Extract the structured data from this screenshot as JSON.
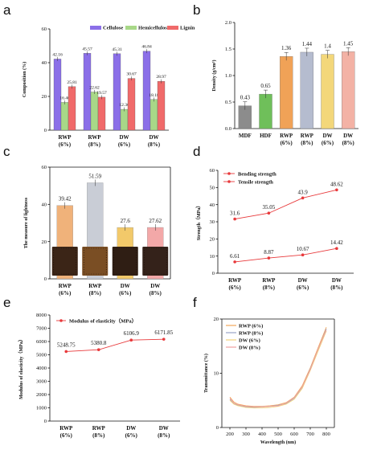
{
  "panels": {
    "a": {
      "letter": "a"
    },
    "b": {
      "letter": "b"
    },
    "c": {
      "letter": "c"
    },
    "d": {
      "letter": "d"
    },
    "e": {
      "letter": "e"
    },
    "f": {
      "letter": "f"
    }
  },
  "chart_data": [
    {
      "id": "a",
      "type": "bar",
      "ylabel": "Composition (%)",
      "ylim": [
        0,
        60
      ],
      "yticks": [
        0,
        20,
        40,
        60
      ],
      "categories": [
        [
          "RWP",
          "(6%)"
        ],
        [
          "RWP",
          "(8%)"
        ],
        [
          "DW",
          "(6%)"
        ],
        [
          "DW",
          "(8%)"
        ]
      ],
      "legend": "top",
      "series": [
        {
          "name": "Cellulose",
          "color": "#8b6fe8",
          "values": [
            42.16,
            45.57,
            45.31,
            46.84
          ],
          "labels": [
            "42.16",
            "45.57",
            "45.31",
            "46.84"
          ]
        },
        {
          "name": "Hemicellulose",
          "color": "#a8d888",
          "values": [
            16.46,
            22.62,
            12.36,
            18.18
          ],
          "labels": [
            "16.46",
            "22.62",
            "12.36",
            "18.18"
          ]
        },
        {
          "name": "Lignin",
          "color": "#f06a6a",
          "values": [
            25.81,
            19.57,
            30.67,
            28.97
          ],
          "labels": [
            "25.81",
            "19.57",
            "30.67",
            "28.97"
          ]
        }
      ]
    },
    {
      "id": "b",
      "type": "bar",
      "ylabel": "Density (g/cm³)",
      "ylim": [
        0,
        2.0
      ],
      "yticks": [
        "0.0",
        "0.5",
        "1.0",
        "1.5",
        "2.0"
      ],
      "categories": [
        [
          "MDF"
        ],
        [
          "HDF"
        ],
        [
          "RWP",
          "(6%)"
        ],
        [
          "RWP",
          "(8%)"
        ],
        [
          "DW",
          "(6%)"
        ],
        [
          "DW",
          "(8%)"
        ]
      ],
      "values": [
        0.43,
        0.65,
        1.36,
        1.44,
        1.4,
        1.45
      ],
      "labels": [
        "0.43",
        "0.65",
        "1.36",
        "1.44",
        "1.4",
        "1.45"
      ],
      "colors": [
        "#8c8c8c",
        "#6fbf5a",
        "#f0a257",
        "#b5bccf",
        "#f3d77a",
        "#f3b2a5"
      ]
    },
    {
      "id": "c",
      "type": "bar",
      "ylabel": "The measure of lightness",
      "ylim": [
        0,
        60
      ],
      "yticks": [
        0,
        20,
        40,
        60
      ],
      "categories": [
        [
          "RWP",
          "(6%)"
        ],
        [
          "RWP",
          "(8%)"
        ],
        [
          "DW",
          "(6%)"
        ],
        [
          "DW",
          "(8%)"
        ]
      ],
      "values": [
        39.42,
        51.59,
        27.6,
        27.62
      ],
      "labels": [
        "39.42",
        "51.59",
        "27.6",
        "27.62"
      ],
      "colors": [
        "#f0b27a",
        "#c9cdd6",
        "#f2c96a",
        "#f3a8a8"
      ]
    },
    {
      "id": "d",
      "type": "line",
      "ylabel": "Strength（MPa）",
      "ylim": [
        0,
        60
      ],
      "yticks": [
        0,
        10,
        20,
        30,
        40,
        50,
        60
      ],
      "categories": [
        [
          "RWP",
          "(6%)"
        ],
        [
          "RWP",
          "(8%)"
        ],
        [
          "DW",
          "(6%)"
        ],
        [
          "DW",
          "(8%)"
        ]
      ],
      "legend": "top-left",
      "series": [
        {
          "name": "Bending strength",
          "values": [
            31.6,
            35.05,
            43.9,
            48.62
          ],
          "labels": [
            "31.6",
            "35.05",
            "43.9",
            "48.62"
          ]
        },
        {
          "name": "Tensile strength",
          "values": [
            6.61,
            8.87,
            10.67,
            14.42
          ],
          "labels": [
            "6.61",
            "8.87",
            "10.67",
            "14.42"
          ]
        }
      ],
      "color": "#e8393b"
    },
    {
      "id": "e",
      "type": "line",
      "ylabel": "Modulus of elasticity（MPa）",
      "ylim": [
        0,
        8000
      ],
      "yticks": [
        0,
        1000,
        2000,
        3000,
        4000,
        5000,
        6000,
        7000,
        8000
      ],
      "categories": [
        [
          "RWP",
          "(6%)"
        ],
        [
          "RWP",
          "(8%)"
        ],
        [
          "DW",
          "(6%)"
        ],
        [
          "DW",
          "(8%)"
        ]
      ],
      "legend": "top-left",
      "series": [
        {
          "name": "Modulus of elasticity（MPa）",
          "values": [
            5248.75,
            5380.8,
            6106.9,
            6171.85
          ],
          "labels": [
            "5248.75",
            "5380.8",
            "6106.9",
            "6171.85"
          ]
        }
      ],
      "color": "#e8393b"
    },
    {
      "id": "f",
      "type": "line",
      "xlabel": "Wavelength (nm)",
      "ylabel": "Transmittance (%)",
      "xlim": [
        150,
        850
      ],
      "ylim": [
        0,
        20
      ],
      "xticks": [
        200,
        300,
        400,
        500,
        600,
        700,
        800
      ],
      "yticks": [
        0,
        10,
        20
      ],
      "legend": "top-left",
      "x": [
        200,
        225,
        250,
        300,
        350,
        400,
        450,
        500,
        550,
        600,
        650,
        700,
        750,
        800
      ],
      "series": [
        {
          "name": "RWP (6%)",
          "color": "#f2a65a",
          "values": [
            5.6,
            4.7,
            4.3,
            4.0,
            3.9,
            3.9,
            4.0,
            4.2,
            4.6,
            5.6,
            7.7,
            11.0,
            14.8,
            18.5
          ]
        },
        {
          "name": "RWP (8%)",
          "color": "#9aa3c7",
          "values": [
            5.2,
            4.4,
            4.1,
            3.8,
            3.7,
            3.8,
            3.9,
            4.1,
            4.4,
            5.4,
            7.4,
            10.8,
            14.5,
            18.2
          ]
        },
        {
          "name": "DW (6%)",
          "color": "#f2d27a",
          "values": [
            5.0,
            4.3,
            4.0,
            3.7,
            3.6,
            3.6,
            3.7,
            3.9,
            4.3,
            5.2,
            7.2,
            10.5,
            14.2,
            17.8
          ]
        },
        {
          "name": "DW (8%)",
          "color": "#f0a0a0",
          "values": [
            5.4,
            4.5,
            4.2,
            3.9,
            3.8,
            3.8,
            3.9,
            4.0,
            4.5,
            5.5,
            7.5,
            10.7,
            14.6,
            18.0
          ]
        }
      ]
    }
  ]
}
